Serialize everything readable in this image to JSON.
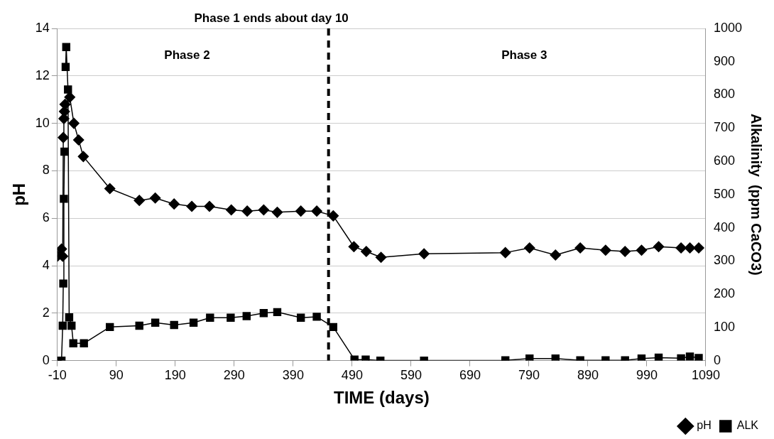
{
  "chart_data": {
    "type": "line",
    "xlabel": "TIME (days)",
    "ylabel": "pH",
    "y2label": "Alkalinity  (ppm CaCO3)",
    "xlim": [
      -10,
      1090
    ],
    "xticks": [
      -10,
      90,
      190,
      290,
      390,
      490,
      590,
      690,
      790,
      890,
      990,
      1090
    ],
    "ylim": [
      0,
      14
    ],
    "yticks": [
      0,
      2,
      4,
      6,
      8,
      10,
      12,
      14
    ],
    "y2lim": [
      0,
      1000
    ],
    "y2ticks": [
      0,
      100,
      200,
      300,
      400,
      500,
      600,
      700,
      800,
      900,
      1000
    ],
    "grid": "y",
    "legend": "bottom right",
    "line_style": "solid",
    "annotations": [
      "Phase 1 ends about day 10",
      "Phase 2",
      "Phase 3"
    ],
    "ref_lines": [
      {
        "axis": "x",
        "value": 450,
        "label": null,
        "color": "#000000",
        "line_style": "dashed"
      }
    ],
    "series": [
      {
        "name": "pH",
        "color": "#000000",
        "marker": "diamond",
        "x": [
          -10,
          -3,
          -1,
          0,
          1,
          2,
          3,
          11,
          18,
          26,
          34,
          79,
          129,
          156,
          188,
          218,
          248,
          285,
          312,
          340,
          363,
          403,
          430,
          458,
          493,
          514,
          539,
          612,
          750,
          791,
          835,
          877,
          920,
          953,
          981,
          1010,
          1048,
          1063,
          1078
        ],
        "values": [
          4.4,
          4.7,
          4.4,
          9.4,
          10.2,
          10.5,
          10.8,
          11.1,
          10.0,
          9.3,
          8.6,
          7.25,
          6.75,
          6.85,
          6.6,
          6.5,
          6.5,
          6.35,
          6.3,
          6.35,
          6.25,
          6.3,
          6.3,
          6.1,
          4.8,
          4.6,
          4.35,
          4.5,
          4.55,
          4.75,
          4.45,
          4.75,
          4.65,
          4.6,
          4.65,
          4.8,
          4.75,
          4.75,
          4.75
        ]
      },
      {
        "name": "ALK",
        "color": "#000000",
        "marker": "square",
        "axis": "y2",
        "x": [
          -10,
          -3,
          -1,
          0,
          1,
          2,
          3,
          4,
          5,
          8,
          10,
          14,
          17,
          35,
          79,
          129,
          156,
          188,
          221,
          249,
          284,
          311,
          340,
          363,
          403,
          430,
          458,
          494,
          513,
          538,
          612,
          750,
          791,
          835,
          877,
          920,
          953,
          981,
          1010,
          1048,
          1063,
          1078
        ],
        "values": [
          0,
          0,
          105,
          232,
          487,
          629,
          null,
          884,
          944,
          816,
          130,
          105,
          52,
          52,
          101,
          105,
          114,
          107,
          114,
          129,
          129,
          134,
          143,
          146,
          129,
          132,
          101,
          3,
          3,
          0,
          0,
          1,
          6,
          6,
          1,
          1,
          1,
          6,
          9,
          7,
          12,
          8
        ]
      }
    ]
  }
}
